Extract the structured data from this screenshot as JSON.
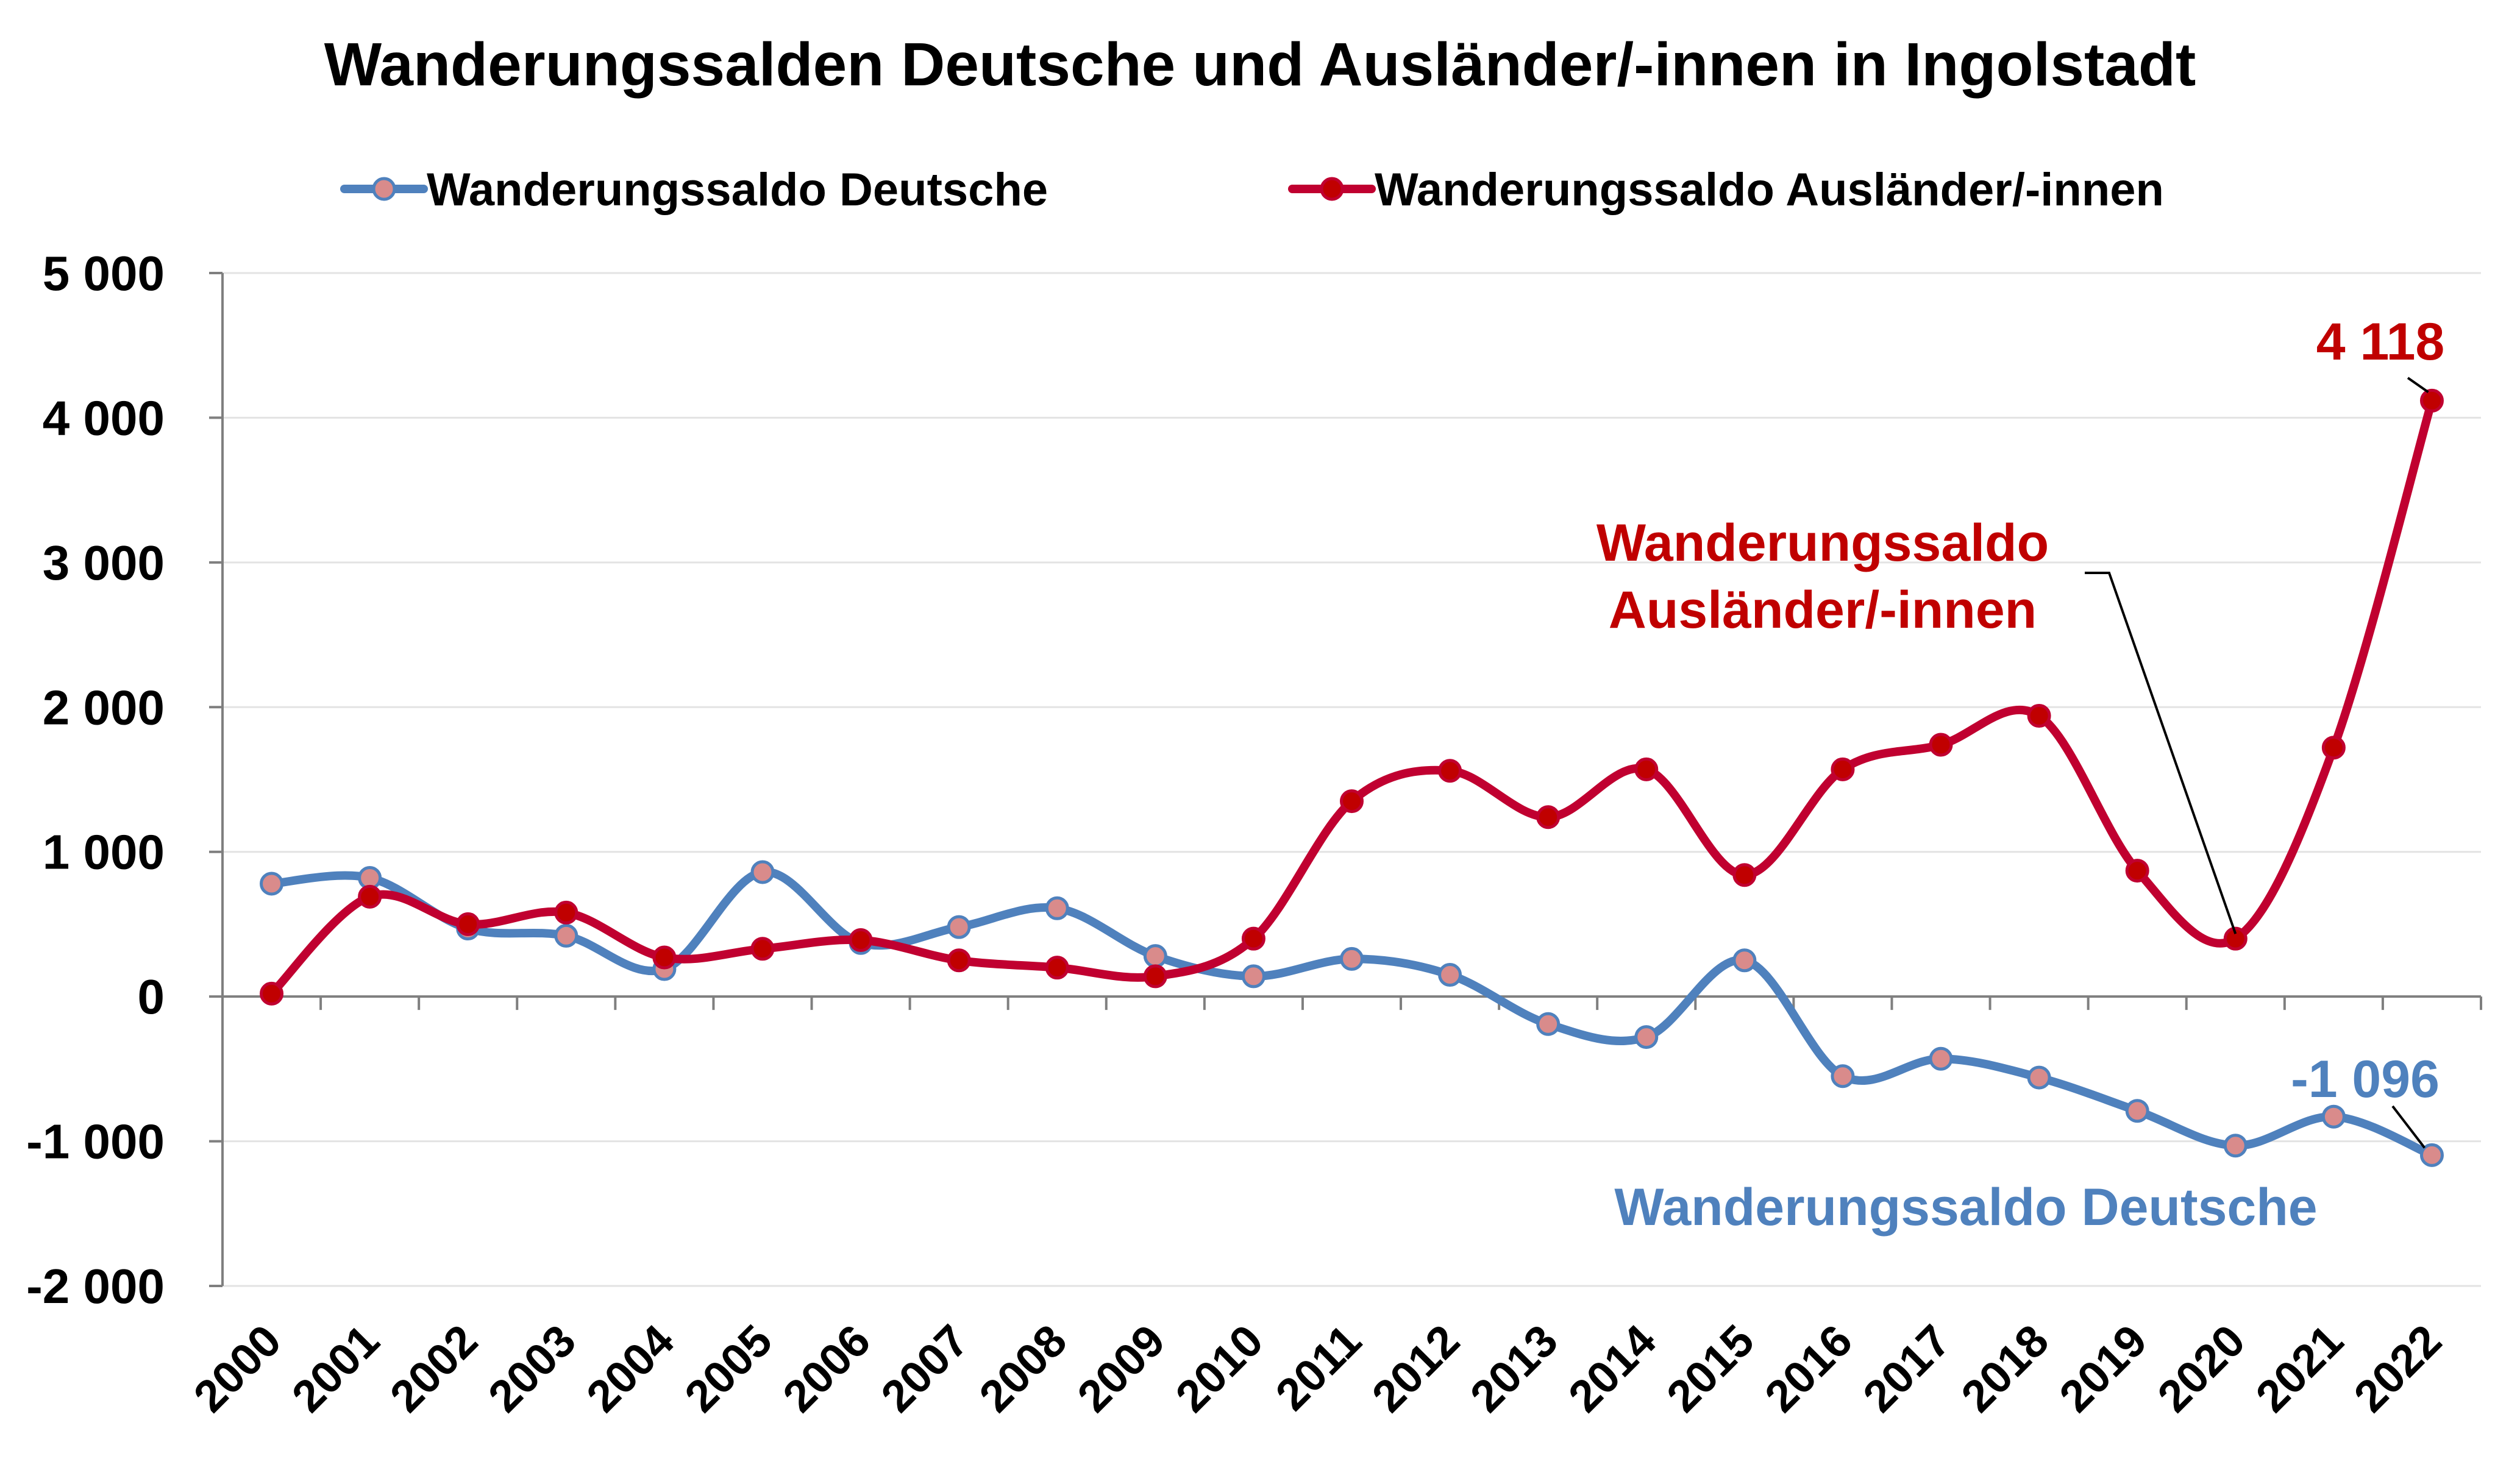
{
  "chart_data": {
    "type": "line",
    "title": "Wanderungssalden Deutsche und Ausländer/-innen in Ingolstadt",
    "xlabel": "",
    "ylabel": "",
    "ylim": [
      -2000,
      5000
    ],
    "yticks": [
      5000,
      4000,
      3000,
      2000,
      1000,
      0,
      -1000,
      -2000
    ],
    "ytick_labels": [
      "5 000",
      "4 000",
      "3 000",
      "2 000",
      "1 000",
      "0",
      "-1 000",
      "-2 000"
    ],
    "categories": [
      "2000",
      "2001",
      "2002",
      "2003",
      "2004",
      "2005",
      "2006",
      "2007",
      "2008",
      "2009",
      "2010",
      "2011",
      "2012",
      "2013",
      "2014",
      "2015",
      "2016",
      "2017",
      "2018",
      "2019",
      "2020",
      "2021",
      "2022"
    ],
    "grid": true,
    "legend_position": "top",
    "series": [
      {
        "name": "Wanderungssaldo Deutsche",
        "color": "#4f81bd",
        "values": [
          780,
          820,
          470,
          420,
          190,
          860,
          370,
          480,
          610,
          280,
          140,
          260,
          150,
          -190,
          -280,
          250,
          -550,
          -430,
          -560,
          -790,
          -1030,
          -830,
          -1096
        ]
      },
      {
        "name": "Wanderungssaldo Ausländer/-innen",
        "color": "#c00030",
        "values": [
          20,
          690,
          500,
          580,
          270,
          330,
          390,
          250,
          200,
          140,
          400,
          1350,
          1560,
          1240,
          1570,
          840,
          1570,
          1740,
          1940,
          870,
          400,
          1720,
          4118
        ]
      }
    ],
    "annotations": {
      "auslaender_label_line1": "Wanderungssaldo",
      "auslaender_label_line2": "Ausländer/-innen",
      "deutsche_label": "Wanderungssaldo Deutsche",
      "last_value_auslaender": "4 118",
      "last_value_deutsche": "-1 096"
    }
  }
}
